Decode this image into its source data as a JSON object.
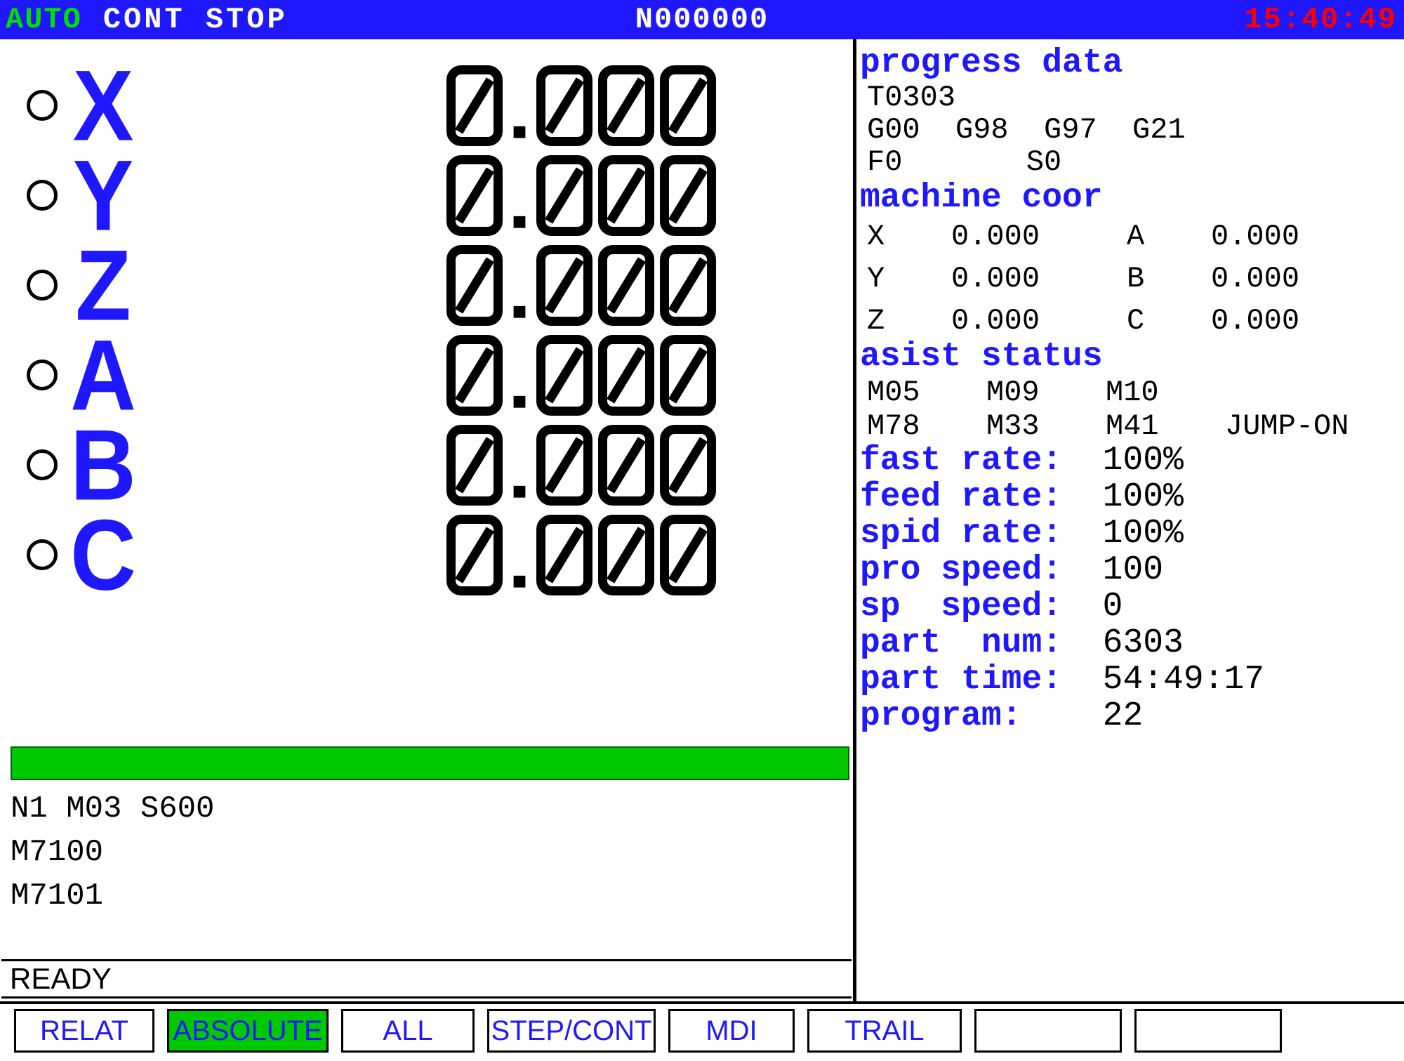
{
  "colors": {
    "header_bg": "#1f18ff",
    "mode_text": "#00e000",
    "clock_text": "#ff0000",
    "axis_label": "#1f18ff",
    "seg_stroke": "#000000",
    "green_bar": "#00c800",
    "heading_text": "#1f18ff",
    "button_text": "#1f18ff"
  },
  "header": {
    "mode": "AUTO",
    "cont": "CONT STOP",
    "program": "N000000",
    "clock": "15:40:49"
  },
  "axes": [
    {
      "label": "X",
      "value": "0.000"
    },
    {
      "label": "Y",
      "value": "0.000"
    },
    {
      "label": "Z",
      "value": "0.000"
    },
    {
      "label": "A",
      "value": "0.000"
    },
    {
      "label": "B",
      "value": "0.000"
    },
    {
      "label": "C",
      "value": "0.000"
    }
  ],
  "green_bar_text": "",
  "code_lines": [
    "N1 M03 S600",
    "M7100",
    "M7101"
  ],
  "status_line": "READY",
  "right": {
    "progress_heading": "progress data",
    "tool": "T0303",
    "gcodes_line": "G00  G98  G97  G21",
    "fs_line": "F0       S0",
    "machine_coor_heading": "machine coor",
    "machine_coor": [
      {
        "a1": "X",
        "v1": "0.000",
        "a2": "A",
        "v2": "0.000"
      },
      {
        "a1": "Y",
        "v1": "0.000",
        "a2": "B",
        "v2": "0.000"
      },
      {
        "a1": "Z",
        "v1": "0.000",
        "a2": "C",
        "v2": "0.000"
      }
    ],
    "asist_heading": "asist status",
    "asist_row1": [
      "M05",
      "M09",
      "M10",
      ""
    ],
    "asist_row2": [
      "M78",
      "M33",
      "M41",
      "JUMP-ON"
    ],
    "rates": [
      {
        "label": "fast rate:",
        "value": "100%"
      },
      {
        "label": "feed rate:",
        "value": "100%"
      },
      {
        "label": "spid rate:",
        "value": "100%"
      },
      {
        "label": "pro speed:",
        "value": "100"
      },
      {
        "label": "sp  speed:",
        "value": "0"
      },
      {
        "label": "part  num:",
        "value": "6303"
      },
      {
        "label": "part time:",
        "value": "54:49:17"
      },
      {
        "label": "program:",
        "value": "22"
      }
    ]
  },
  "buttons": [
    {
      "label": "RELAT",
      "active": false
    },
    {
      "label": "ABSOLUTE",
      "active": true
    },
    {
      "label": "ALL",
      "active": false
    },
    {
      "label": "STEP/CONT",
      "active": false
    },
    {
      "label": "MDI",
      "active": false
    },
    {
      "label": "TRAIL",
      "active": false
    },
    {
      "label": "",
      "active": false
    },
    {
      "label": "",
      "active": false
    }
  ]
}
